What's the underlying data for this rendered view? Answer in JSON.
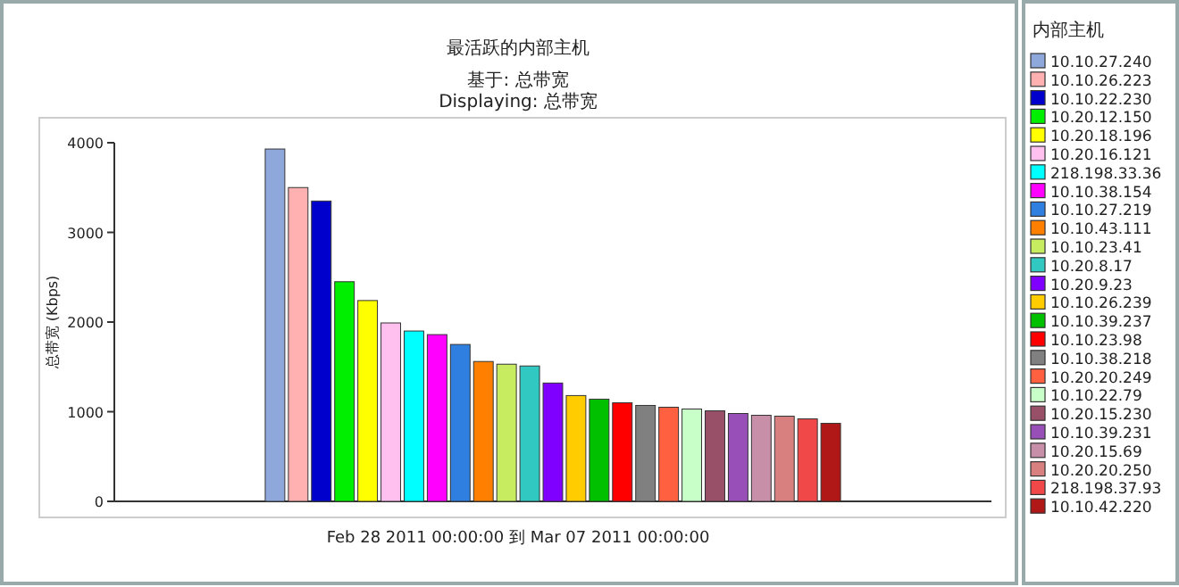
{
  "chart_data": {
    "type": "bar",
    "title": "最活跃的内部主机",
    "subtitle": "基于: 总带宽",
    "annotations": [
      "Displaying: 总带宽"
    ],
    "xlabel": "Feb 28 2011  00:00:00  到  Mar 07 2011  00:00:00",
    "ylabel": "总带宽 (Kbps)",
    "legend_title": "内部主机",
    "categories": [
      null
    ],
    "series": [
      {
        "name": "10.10.27.240",
        "color": "#8fa8dc",
        "values": [
          3930
        ]
      },
      {
        "name": "10.10.26.223",
        "color": "#ffb0b0",
        "values": [
          3500
        ]
      },
      {
        "name": "10.10.22.230",
        "color": "#0000cc",
        "values": [
          3350
        ]
      },
      {
        "name": "10.20.12.150",
        "color": "#00ee00",
        "values": [
          2450
        ]
      },
      {
        "name": "10.20.18.196",
        "color": "#ffff00",
        "values": [
          2240
        ]
      },
      {
        "name": "10.20.16.121",
        "color": "#ffc0f0",
        "values": [
          1990
        ]
      },
      {
        "name": "218.198.33.36",
        "color": "#00ffff",
        "values": [
          1900
        ]
      },
      {
        "name": "10.10.38.154",
        "color": "#ff00ff",
        "values": [
          1860
        ]
      },
      {
        "name": "10.10.27.219",
        "color": "#2f7fe0",
        "values": [
          1750
        ]
      },
      {
        "name": "10.10.43.111",
        "color": "#ff8000",
        "values": [
          1560
        ]
      },
      {
        "name": "10.10.23.41",
        "color": "#c8ec60",
        "values": [
          1530
        ]
      },
      {
        "name": "10.20.8.17",
        "color": "#30c8c0",
        "values": [
          1510
        ]
      },
      {
        "name": "10.20.9.23",
        "color": "#8000ff",
        "values": [
          1320
        ]
      },
      {
        "name": "10.10.26.239",
        "color": "#ffcc00",
        "values": [
          1180
        ]
      },
      {
        "name": "10.10.39.237",
        "color": "#00c000",
        "values": [
          1140
        ]
      },
      {
        "name": "10.10.23.98",
        "color": "#ff0000",
        "values": [
          1100
        ]
      },
      {
        "name": "10.10.38.218",
        "color": "#808080",
        "values": [
          1070
        ]
      },
      {
        "name": "10.20.20.249",
        "color": "#ff6040",
        "values": [
          1050
        ]
      },
      {
        "name": "10.10.22.79",
        "color": "#c8ffc8",
        "values": [
          1030
        ]
      },
      {
        "name": "10.20.15.230",
        "color": "#985068",
        "values": [
          1010
        ]
      },
      {
        "name": "10.10.39.231",
        "color": "#9850b8",
        "values": [
          980
        ]
      },
      {
        "name": "10.20.15.69",
        "color": "#c890a8",
        "values": [
          960
        ]
      },
      {
        "name": "10.20.20.250",
        "color": "#d88080",
        "values": [
          950
        ]
      },
      {
        "name": "218.198.37.93",
        "color": "#f04848",
        "values": [
          920
        ]
      },
      {
        "name": "10.10.42.220",
        "color": "#b01818",
        "values": [
          870
        ]
      }
    ],
    "ylim": [
      0,
      4000
    ],
    "yticks": [
      0,
      1000,
      2000,
      3000,
      4000
    ],
    "legend": "right"
  }
}
